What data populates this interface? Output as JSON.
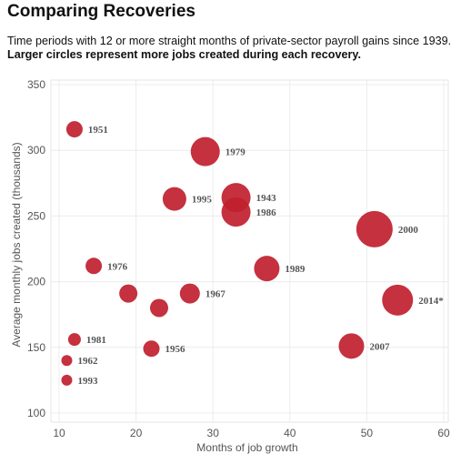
{
  "title": "Comparing Recoveries",
  "subtitle_plain": "Time periods with 12 or more straight months of private-sector payroll gains since 1939.",
  "subtitle_bold": "Larger circles represent more jobs created during each recovery.",
  "chart_data": {
    "type": "scatter",
    "xlabel": "Months of job growth",
    "ylabel": "Average monthly jobs created (thousands)",
    "xlim": [
      10,
      60
    ],
    "ylim": [
      100,
      350
    ],
    "xticks": [
      10,
      20,
      30,
      40,
      50,
      60
    ],
    "yticks": [
      100,
      150,
      200,
      250,
      300,
      350
    ],
    "grid": true,
    "bubble_color": "#c0202e",
    "size_encoding": "Larger circles represent more jobs created during each recovery.",
    "points": [
      {
        "label": "1951",
        "x": 12,
        "y": 316,
        "size": 9,
        "label_pos": "right"
      },
      {
        "label": "1979",
        "x": 29,
        "y": 299,
        "size": 16,
        "label_pos": "right"
      },
      {
        "label": "1995",
        "x": 25,
        "y": 263,
        "size": 13,
        "label_pos": "right"
      },
      {
        "label": "1943",
        "x": 33,
        "y": 264,
        "size": 16,
        "label_pos": "right"
      },
      {
        "label": "1986",
        "x": 33,
        "y": 253,
        "size": 16,
        "label_pos": "right"
      },
      {
        "label": "2000",
        "x": 51,
        "y": 240,
        "size": 20,
        "label_pos": "right"
      },
      {
        "label": "1976",
        "x": 14.5,
        "y": 212,
        "size": 9,
        "label_pos": "right"
      },
      {
        "label": "1989",
        "x": 37,
        "y": 210,
        "size": 14,
        "label_pos": "right"
      },
      {
        "label": "",
        "x": 19,
        "y": 191,
        "size": 10,
        "label_pos": "right"
      },
      {
        "label": "1967",
        "x": 27,
        "y": 191,
        "size": 11,
        "label_pos": "right"
      },
      {
        "label": "",
        "x": 23,
        "y": 180,
        "size": 10,
        "label_pos": "right"
      },
      {
        "label": "2014*",
        "x": 54,
        "y": 186,
        "size": 17,
        "label_pos": "right"
      },
      {
        "label": "1981",
        "x": 12,
        "y": 156,
        "size": 7,
        "label_pos": "right"
      },
      {
        "label": "1956",
        "x": 22,
        "y": 149,
        "size": 9,
        "label_pos": "right"
      },
      {
        "label": "2007",
        "x": 48,
        "y": 151,
        "size": 14,
        "label_pos": "right"
      },
      {
        "label": "1962",
        "x": 11,
        "y": 140,
        "size": 6,
        "label_pos": "right"
      },
      {
        "label": "1993",
        "x": 11,
        "y": 125,
        "size": 6,
        "label_pos": "right"
      }
    ]
  }
}
